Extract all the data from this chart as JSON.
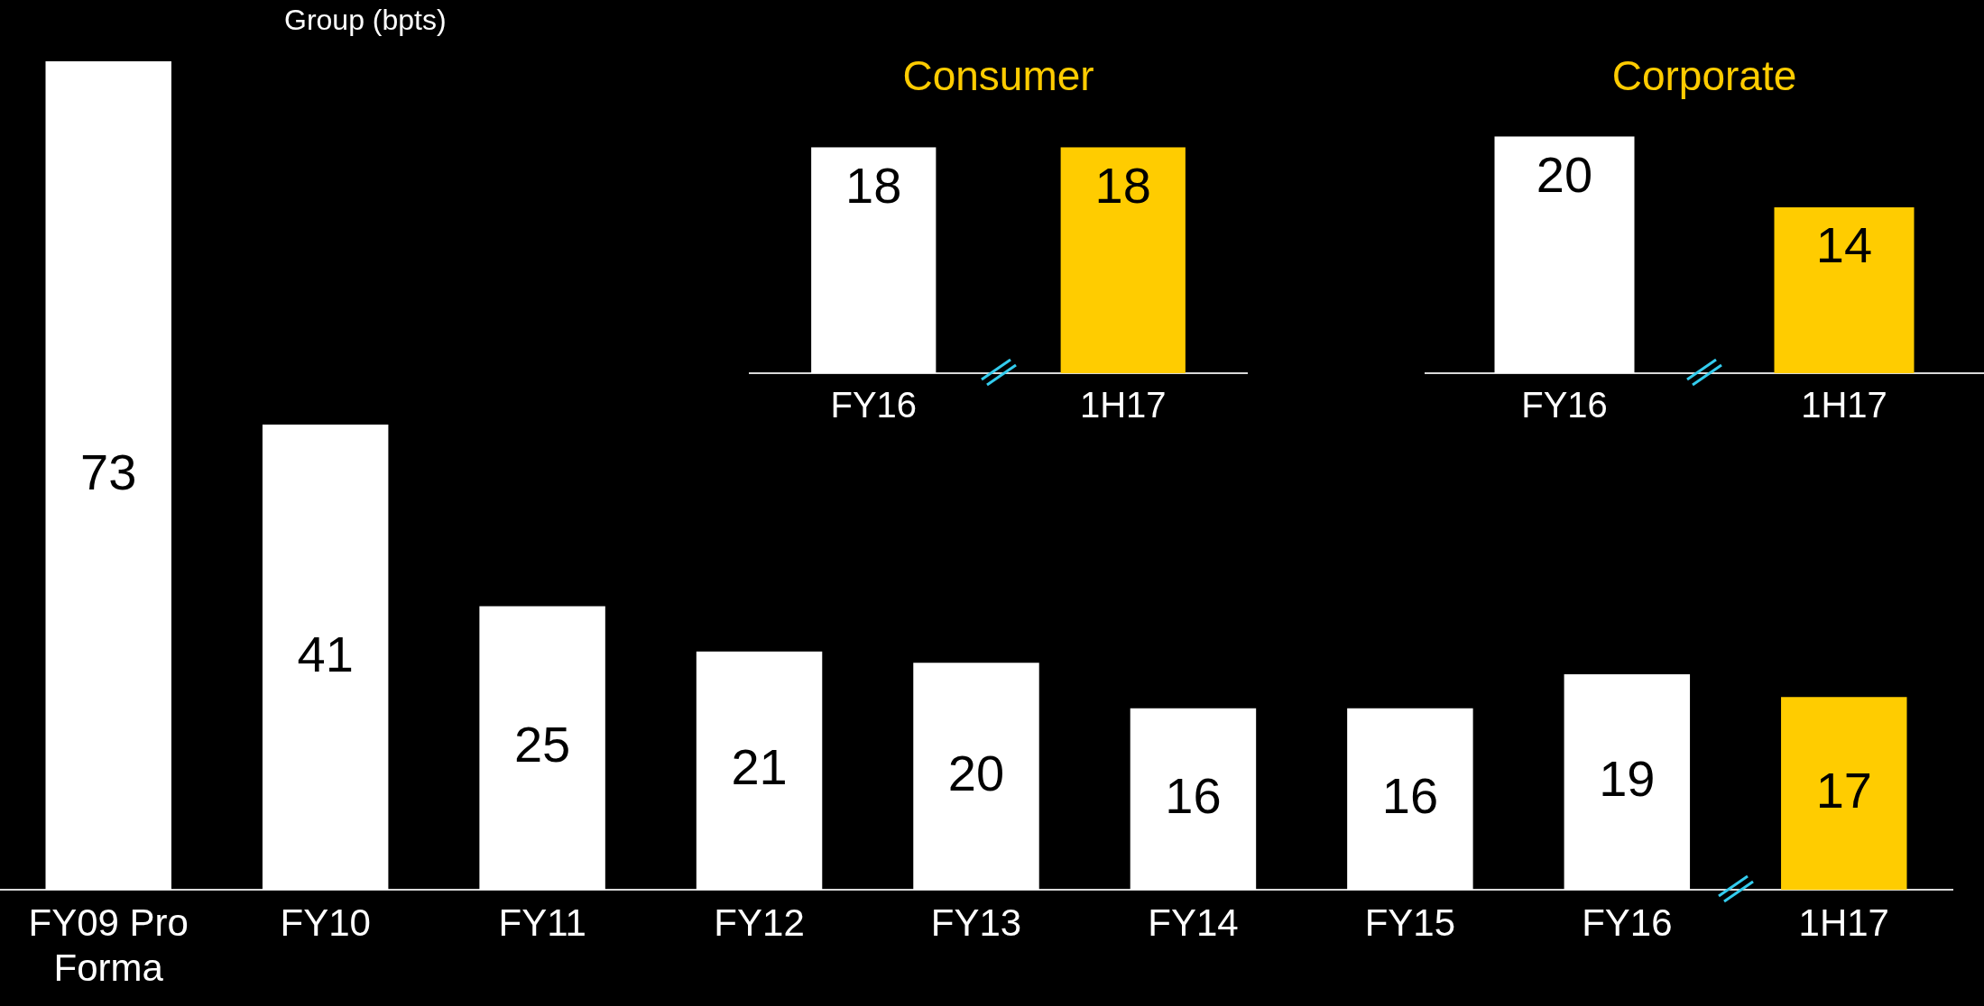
{
  "chart_data": [
    {
      "type": "bar",
      "title": "Group (bpts)",
      "categories": [
        "FY09 Pro Forma",
        "FY10",
        "FY11",
        "FY12",
        "FY13",
        "FY14",
        "FY15",
        "FY16",
        "1H17"
      ],
      "values": [
        73,
        41,
        25,
        21,
        20,
        16,
        16,
        19,
        17
      ],
      "colors": [
        "#ffffff",
        "#ffffff",
        "#ffffff",
        "#ffffff",
        "#ffffff",
        "#ffffff",
        "#ffffff",
        "#ffffff",
        "#ffcc00"
      ],
      "data_labels": true
    },
    {
      "type": "bar",
      "title": "Consumer",
      "categories": [
        "FY16",
        "1H17"
      ],
      "values": [
        18,
        18
      ],
      "colors": [
        "#ffffff",
        "#ffcc00"
      ],
      "data_labels": true
    },
    {
      "type": "bar",
      "title": "Corporate",
      "categories": [
        "FY16",
        "1H17"
      ],
      "values": [
        20,
        14
      ],
      "colors": [
        "#ffffff",
        "#ffcc00"
      ],
      "data_labels": true
    }
  ]
}
